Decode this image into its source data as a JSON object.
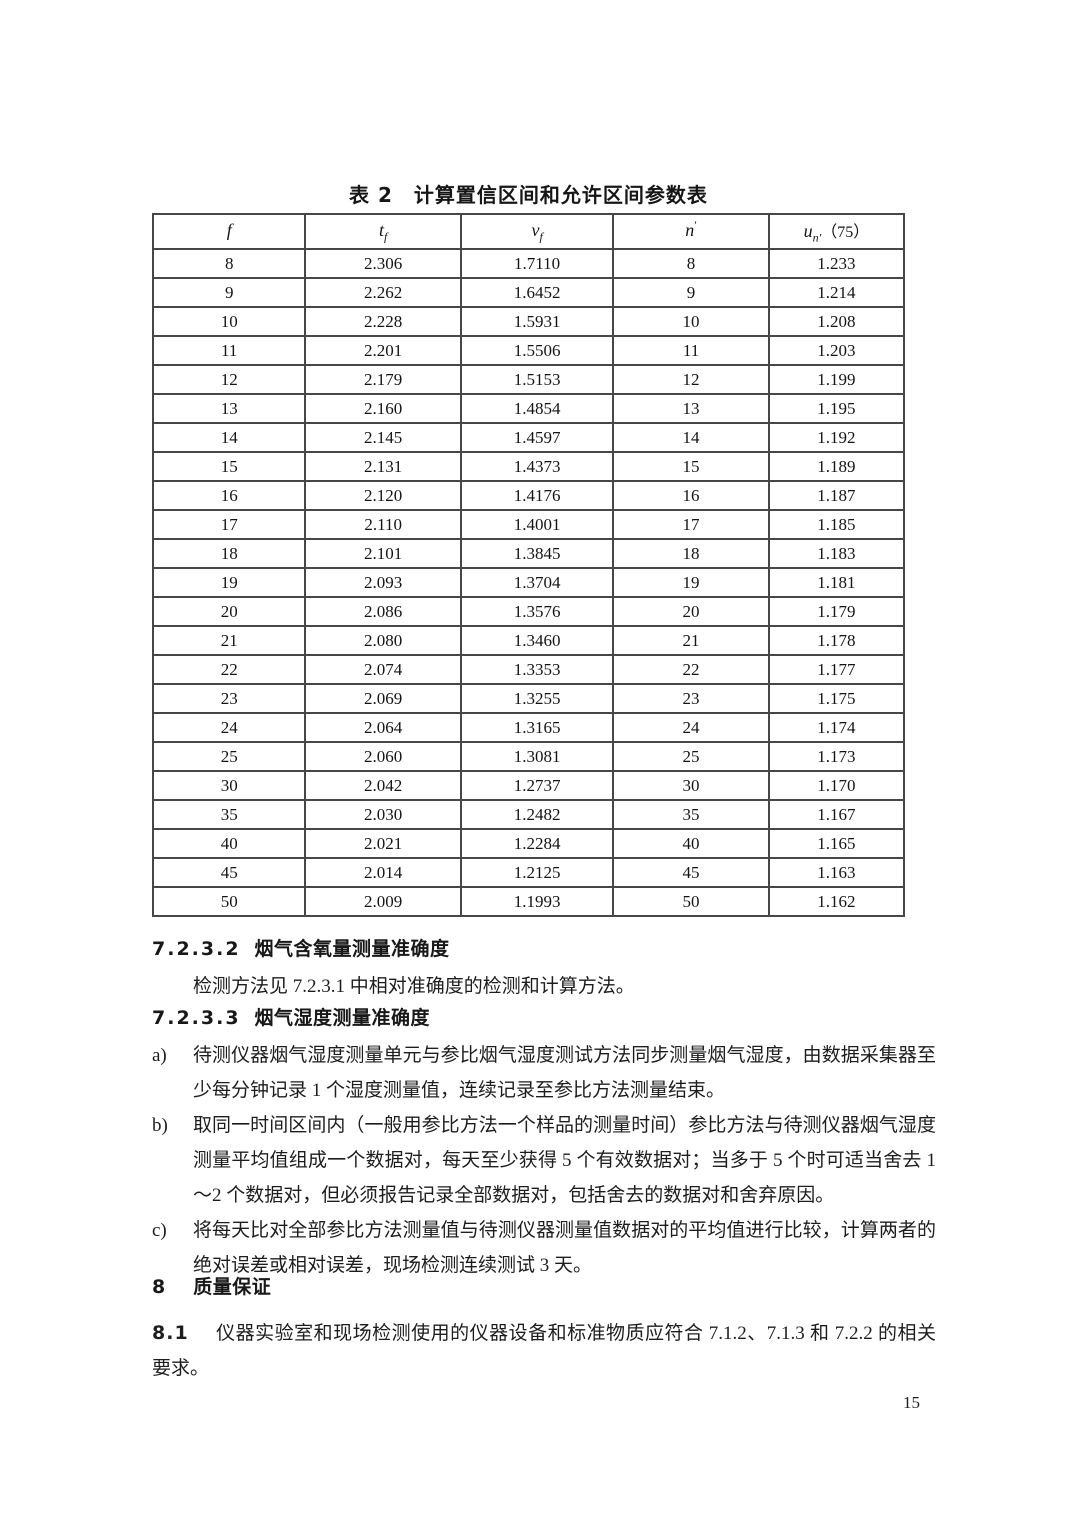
{
  "table": {
    "caption": "表 2　计算置信区间和允许区间参数表",
    "headers": [
      {
        "base": "f",
        "sub": "",
        "sup": "",
        "suffix": ""
      },
      {
        "base": "t",
        "sub": "f",
        "sup": "",
        "suffix": ""
      },
      {
        "base": "v",
        "sub": "f",
        "sup": "",
        "suffix": ""
      },
      {
        "base": "n",
        "sub": "",
        "sup": "′",
        "suffix": ""
      },
      {
        "base": "u",
        "sub": "n′",
        "sup": "",
        "suffix": "（75）"
      }
    ],
    "rows": [
      [
        "8",
        "2.306",
        "1.7110",
        "8",
        "1.233"
      ],
      [
        "9",
        "2.262",
        "1.6452",
        "9",
        "1.214"
      ],
      [
        "10",
        "2.228",
        "1.5931",
        "10",
        "1.208"
      ],
      [
        "11",
        "2.201",
        "1.5506",
        "11",
        "1.203"
      ],
      [
        "12",
        "2.179",
        "1.5153",
        "12",
        "1.199"
      ],
      [
        "13",
        "2.160",
        "1.4854",
        "13",
        "1.195"
      ],
      [
        "14",
        "2.145",
        "1.4597",
        "14",
        "1.192"
      ],
      [
        "15",
        "2.131",
        "1.4373",
        "15",
        "1.189"
      ],
      [
        "16",
        "2.120",
        "1.4176",
        "16",
        "1.187"
      ],
      [
        "17",
        "2.110",
        "1.4001",
        "17",
        "1.185"
      ],
      [
        "18",
        "2.101",
        "1.3845",
        "18",
        "1.183"
      ],
      [
        "19",
        "2.093",
        "1.3704",
        "19",
        "1.181"
      ],
      [
        "20",
        "2.086",
        "1.3576",
        "20",
        "1.179"
      ],
      [
        "21",
        "2.080",
        "1.3460",
        "21",
        "1.178"
      ],
      [
        "22",
        "2.074",
        "1.3353",
        "22",
        "1.177"
      ],
      [
        "23",
        "2.069",
        "1.3255",
        "23",
        "1.175"
      ],
      [
        "24",
        "2.064",
        "1.3165",
        "24",
        "1.174"
      ],
      [
        "25",
        "2.060",
        "1.3081",
        "25",
        "1.173"
      ],
      [
        "30",
        "2.042",
        "1.2737",
        "30",
        "1.170"
      ],
      [
        "35",
        "2.030",
        "1.2482",
        "35",
        "1.167"
      ],
      [
        "40",
        "2.021",
        "1.2284",
        "40",
        "1.165"
      ],
      [
        "45",
        "2.014",
        "1.2125",
        "45",
        "1.163"
      ],
      [
        "50",
        "2.009",
        "1.1993",
        "50",
        "1.162"
      ]
    ]
  },
  "sections": {
    "s7232": {
      "number": "7.2.3.2",
      "title": "烟气含氧量测量准确度",
      "body": "检测方法见 7.2.3.1 中相对准确度的检测和计算方法。"
    },
    "s7233": {
      "number": "7.2.3.3",
      "title": "烟气湿度测量准确度"
    },
    "list": [
      {
        "marker": "a)",
        "text": "待测仪器烟气湿度测量单元与参比烟气湿度测试方法同步测量烟气湿度，由数据采集器至少每分钟记录 1 个湿度测量值，连续记录至参比方法测量结束。"
      },
      {
        "marker": "b)",
        "text": "取同一时间区间内（一般用参比方法一个样品的测量时间）参比方法与待测仪器烟气湿度测量平均值组成一个数据对，每天至少获得 5 个有效数据对；当多于 5 个时可适当舍去 1～2 个数据对，但必须报告记录全部数据对，包括舍去的数据对和舍弃原因。"
      },
      {
        "marker": "c)",
        "text": "将每天比对全部参比方法测量值与待测仪器测量值数据对的平均值进行比较，计算两者的绝对误差或相对误差，现场检测连续测试 3 天。"
      }
    ],
    "s8": {
      "number": "8",
      "title": "质量保证"
    },
    "s81": {
      "number": "8.1",
      "text": "仪器实验室和现场检测使用的仪器设备和标准物质应符合 7.1.2、7.1.3 和 7.2.2 的相关要求。"
    }
  },
  "page": {
    "number": "15"
  }
}
